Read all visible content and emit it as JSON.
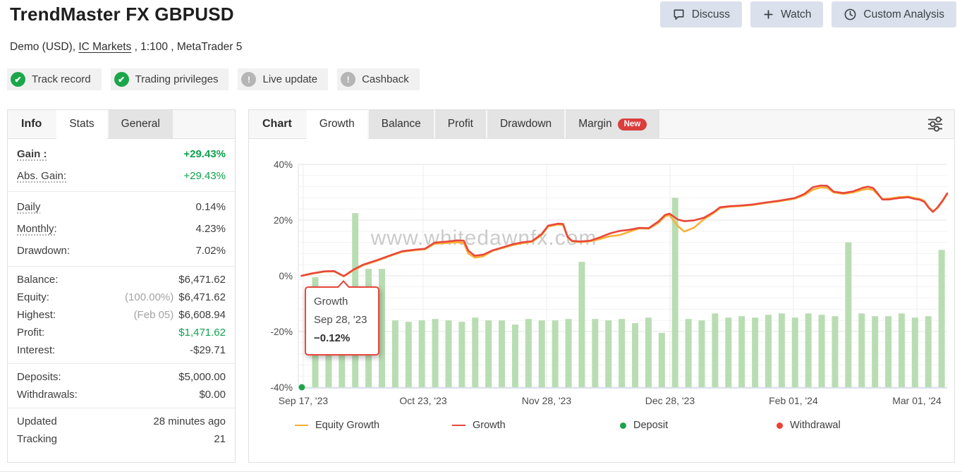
{
  "header": {
    "title": "TrendMaster FX GBPUSD",
    "buttons": [
      {
        "label": "Discuss",
        "icon": "chat-icon"
      },
      {
        "label": "Watch",
        "icon": "plus-icon"
      },
      {
        "label": "Custom Analysis",
        "icon": "clock-icon"
      }
    ]
  },
  "subtitle": {
    "prefix": "Demo (USD), ",
    "link": "IC Markets",
    "suffix": " , 1:100 , MetaTrader 5"
  },
  "badges": [
    {
      "label": "Track record",
      "icon": "check-icon",
      "status": "verified"
    },
    {
      "label": "Trading privileges",
      "icon": "check-icon",
      "status": "verified"
    },
    {
      "label": "Live update",
      "icon": "exclamation-icon",
      "status": "inactive"
    },
    {
      "label": "Cashback",
      "icon": "exclamation-icon",
      "status": "inactive"
    }
  ],
  "stats_panel": {
    "label": "Info",
    "tabs": [
      {
        "label": "Stats",
        "active": true
      },
      {
        "label": "General",
        "active": false
      }
    ],
    "rows": {
      "gain": {
        "label": "Gain :",
        "value": "+29.43%"
      },
      "abs_gain": {
        "label": "Abs. Gain:",
        "value": "+29.43%"
      },
      "daily": {
        "label": "Daily",
        "value": "0.14%"
      },
      "monthly": {
        "label": "Monthly:",
        "value": "4.23%"
      },
      "drawdown": {
        "label": "Drawdown:",
        "value": "7.02%"
      },
      "balance": {
        "label": "Balance:",
        "value": "$6,471.62"
      },
      "equity": {
        "label": "Equity:",
        "prefix": "(100.00%)",
        "value": "$6,471.62"
      },
      "highest": {
        "label": "Highest:",
        "prefix": "(Feb 05)",
        "value": "$6,608.94"
      },
      "profit": {
        "label": "Profit:",
        "value": "$1,471.62"
      },
      "interest": {
        "label": "Interest:",
        "value": "-$29.71"
      },
      "deposits": {
        "label": "Deposits:",
        "value": "$5,000.00"
      },
      "withdrawals": {
        "label": "Withdrawals:",
        "value": "$0.00"
      },
      "updated": {
        "label": "Updated",
        "value": "28 minutes ago"
      },
      "tracking": {
        "label": "Tracking",
        "value": "21"
      }
    }
  },
  "chart_panel": {
    "label": "Chart",
    "tabs": [
      {
        "label": "Growth",
        "active": true
      },
      {
        "label": "Balance",
        "active": false
      },
      {
        "label": "Profit",
        "active": false
      },
      {
        "label": "Drawdown",
        "active": false
      },
      {
        "label": "Margin",
        "active": false,
        "badge": "New"
      }
    ]
  },
  "colors": {
    "growth_line": "#e8483b",
    "equity_line": "#fbb034",
    "bars": "#b9ddb2",
    "deposit": "#1fa24d",
    "withdrawal": "#e8483b",
    "positive_green": "#0fa24d",
    "new_badge": "#db3d3d",
    "grid_major": "#e3e3e3",
    "grid_minor": "#f3f3f3",
    "watermark": "#cbcbcb"
  },
  "chart_data": {
    "type": "line",
    "title": "Growth",
    "ylabel": "%",
    "ylim": [
      -40,
      40
    ],
    "grid": true,
    "legend_position": "bottom",
    "y_ticks": [
      {
        "v": 40,
        "label": "40%"
      },
      {
        "v": 20,
        "label": "20%"
      },
      {
        "v": 0,
        "label": "0%"
      },
      {
        "v": -20,
        "label": "-20%"
      },
      {
        "v": -40,
        "label": "-40%"
      }
    ],
    "x_ticks": [
      {
        "f": 0.0076,
        "label": "Sep 17, '23"
      },
      {
        "f": 0.1924,
        "label": "Oct 23, '23"
      },
      {
        "f": 0.3826,
        "label": "Nov 28, '23"
      },
      {
        "f": 0.5728,
        "label": "Dec 28, '23"
      },
      {
        "f": 0.763,
        "label": "Feb 01, '24"
      },
      {
        "f": 0.9533,
        "label": "Mar 01, '24"
      }
    ],
    "series": [
      {
        "name": "Equity Growth",
        "color": "#fbb034",
        "points": [
          [
            0.005,
            0
          ],
          [
            0.02,
            0.7
          ],
          [
            0.04,
            1.5
          ],
          [
            0.055,
            1.6
          ],
          [
            0.07,
            -0.2
          ],
          [
            0.085,
            2
          ],
          [
            0.1,
            3.8
          ],
          [
            0.12,
            5.3
          ],
          [
            0.14,
            7
          ],
          [
            0.16,
            8.6
          ],
          [
            0.18,
            9.2
          ],
          [
            0.195,
            9.5
          ],
          [
            0.21,
            11.5
          ],
          [
            0.23,
            11.8
          ],
          [
            0.245,
            12
          ],
          [
            0.255,
            11.8
          ],
          [
            0.262,
            8
          ],
          [
            0.272,
            6.5
          ],
          [
            0.285,
            7
          ],
          [
            0.3,
            9
          ],
          [
            0.315,
            10
          ],
          [
            0.33,
            11
          ],
          [
            0.345,
            11.7
          ],
          [
            0.36,
            12.2
          ],
          [
            0.375,
            14.6
          ],
          [
            0.385,
            17.7
          ],
          [
            0.4,
            18.4
          ],
          [
            0.408,
            18.2
          ],
          [
            0.415,
            13.8
          ],
          [
            0.422,
            12.3
          ],
          [
            0.435,
            12.1
          ],
          [
            0.45,
            12.4
          ],
          [
            0.465,
            13.2
          ],
          [
            0.48,
            14.2
          ],
          [
            0.495,
            14.6
          ],
          [
            0.51,
            15.8
          ],
          [
            0.525,
            17
          ],
          [
            0.54,
            16.9
          ],
          [
            0.555,
            19
          ],
          [
            0.565,
            21.3
          ],
          [
            0.572,
            21.8
          ],
          [
            0.585,
            17.8
          ],
          [
            0.595,
            15.9
          ],
          [
            0.61,
            17.3
          ],
          [
            0.625,
            20.3
          ],
          [
            0.64,
            22.5
          ],
          [
            0.65,
            24.3
          ],
          [
            0.665,
            24.8
          ],
          [
            0.68,
            25
          ],
          [
            0.7,
            25.4
          ],
          [
            0.72,
            26.1
          ],
          [
            0.74,
            26.7
          ],
          [
            0.755,
            27.3
          ],
          [
            0.765,
            27.7
          ],
          [
            0.78,
            29
          ],
          [
            0.793,
            30.9
          ],
          [
            0.805,
            31.7
          ],
          [
            0.815,
            31.6
          ],
          [
            0.825,
            29.9
          ],
          [
            0.84,
            29.4
          ],
          [
            0.855,
            29.9
          ],
          [
            0.87,
            30.9
          ],
          [
            0.878,
            31.2
          ],
          [
            0.886,
            30.8
          ],
          [
            0.893,
            29.2
          ],
          [
            0.9,
            27.6
          ],
          [
            0.91,
            27.7
          ],
          [
            0.925,
            28.2
          ],
          [
            0.94,
            28.4
          ],
          [
            0.95,
            27.9
          ],
          [
            0.958,
            27.6
          ],
          [
            0.965,
            26.8
          ],
          [
            0.972,
            24.5
          ],
          [
            0.978,
            23.2
          ],
          [
            0.985,
            24.3
          ],
          [
            0.993,
            26.8
          ],
          [
            1,
            29.4
          ]
        ]
      },
      {
        "name": "Growth",
        "color": "#e8483b",
        "points": [
          [
            0.005,
            0
          ],
          [
            0.02,
            0.8
          ],
          [
            0.04,
            1.6
          ],
          [
            0.055,
            1.7
          ],
          [
            0.07,
            -0.1
          ],
          [
            0.085,
            2.2
          ],
          [
            0.1,
            4
          ],
          [
            0.12,
            5.5
          ],
          [
            0.14,
            7.2
          ],
          [
            0.16,
            8.8
          ],
          [
            0.18,
            9.4
          ],
          [
            0.195,
            9.7
          ],
          [
            0.21,
            11.9
          ],
          [
            0.23,
            12.3
          ],
          [
            0.245,
            12.7
          ],
          [
            0.255,
            12.6
          ],
          [
            0.262,
            9
          ],
          [
            0.272,
            7.2
          ],
          [
            0.285,
            7.6
          ],
          [
            0.3,
            9.2
          ],
          [
            0.315,
            10.2
          ],
          [
            0.33,
            11.3
          ],
          [
            0.345,
            12
          ],
          [
            0.36,
            12.4
          ],
          [
            0.375,
            15
          ],
          [
            0.385,
            18
          ],
          [
            0.4,
            18.7
          ],
          [
            0.408,
            18.6
          ],
          [
            0.415,
            14
          ],
          [
            0.422,
            12.5
          ],
          [
            0.435,
            12.3
          ],
          [
            0.45,
            12.6
          ],
          [
            0.465,
            13.8
          ],
          [
            0.48,
            15.2
          ],
          [
            0.495,
            16.1
          ],
          [
            0.51,
            16.5
          ],
          [
            0.525,
            17.2
          ],
          [
            0.54,
            17.1
          ],
          [
            0.555,
            19.5
          ],
          [
            0.565,
            21.8
          ],
          [
            0.572,
            22.3
          ],
          [
            0.585,
            20.2
          ],
          [
            0.595,
            19.6
          ],
          [
            0.61,
            19.9
          ],
          [
            0.625,
            20.8
          ],
          [
            0.64,
            22.8
          ],
          [
            0.65,
            24.6
          ],
          [
            0.665,
            25
          ],
          [
            0.68,
            25.2
          ],
          [
            0.7,
            25.6
          ],
          [
            0.72,
            26.3
          ],
          [
            0.74,
            26.9
          ],
          [
            0.755,
            27.5
          ],
          [
            0.765,
            27.9
          ],
          [
            0.78,
            29.4
          ],
          [
            0.793,
            31.8
          ],
          [
            0.805,
            32.4
          ],
          [
            0.815,
            32.3
          ],
          [
            0.825,
            30.2
          ],
          [
            0.84,
            29.7
          ],
          [
            0.855,
            30.3
          ],
          [
            0.87,
            31.6
          ],
          [
            0.878,
            32
          ],
          [
            0.886,
            31.5
          ],
          [
            0.893,
            29.5
          ],
          [
            0.9,
            27.4
          ],
          [
            0.91,
            27.4
          ],
          [
            0.925,
            27.9
          ],
          [
            0.94,
            28.2
          ],
          [
            0.95,
            27.6
          ],
          [
            0.958,
            27.3
          ],
          [
            0.965,
            26.5
          ],
          [
            0.972,
            24.3
          ],
          [
            0.978,
            22.9
          ],
          [
            0.985,
            24.5
          ],
          [
            0.993,
            27
          ],
          [
            1,
            29.6
          ]
        ]
      }
    ],
    "bars": {
      "color": "#b9ddb2",
      "start_f": 0.0261,
      "step_f": 0.02054,
      "values": [
        -0.5,
        -6,
        -8,
        22.5,
        2.5,
        2.5,
        -16,
        -16.5,
        -16,
        -15.5,
        -16,
        -16.5,
        -15,
        -16,
        -16,
        -17.5,
        -15.5,
        -16,
        -16,
        -15.5,
        5,
        -15.5,
        -16,
        -15.5,
        -17,
        -15,
        -20.5,
        28,
        -15.5,
        -16,
        -13.5,
        -15,
        -14.5,
        -15,
        -14,
        -13.5,
        -15,
        -13.5,
        -14,
        -14.5,
        12,
        -13.5,
        -14.5,
        -14.5,
        -13.5,
        -15,
        -14.5,
        9.3
      ]
    },
    "markers": [
      {
        "type": "deposit",
        "f": 0.0054,
        "v": -40,
        "color": "#1fa24d"
      }
    ],
    "watermark": "www.whitedawnfx.com",
    "tooltip": {
      "series": "Growth",
      "date": "Sep 28, '23",
      "value": "−0.12%"
    },
    "legend": [
      {
        "label": "Equity Growth",
        "swatch": "line",
        "color": "#fbb034"
      },
      {
        "label": "Growth",
        "swatch": "line",
        "color": "#e8483b"
      },
      {
        "label": "Deposit",
        "swatch": "dot",
        "color": "#1fa24d"
      },
      {
        "label": "Withdrawal",
        "swatch": "dot",
        "color": "#ea4336"
      }
    ]
  }
}
